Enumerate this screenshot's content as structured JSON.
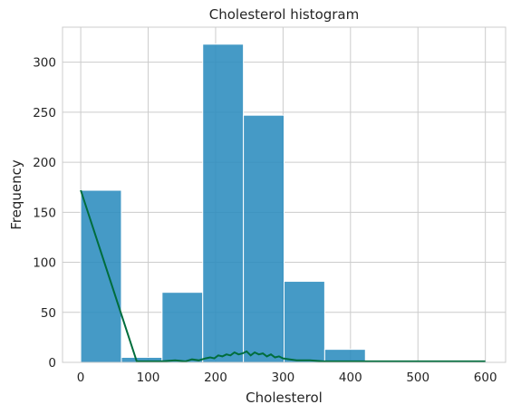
{
  "chart_data": {
    "type": "bar",
    "title": "Cholesterol histogram",
    "xlabel": "Cholesterol",
    "ylabel": "Frequency",
    "xlim": [
      -27,
      630
    ],
    "ylim": [
      0,
      335
    ],
    "xticks": [
      0,
      100,
      200,
      300,
      400,
      500,
      600
    ],
    "yticks": [
      0,
      50,
      100,
      150,
      200,
      250,
      300
    ],
    "grid": true,
    "bar_color": "#2b8cbe",
    "line_color": "#006d3c",
    "bins": [
      {
        "x0": 0,
        "x1": 60.3,
        "count": 172
      },
      {
        "x0": 60.3,
        "x1": 120.6,
        "count": 5
      },
      {
        "x0": 120.6,
        "x1": 180.9,
        "count": 70
      },
      {
        "x0": 180.9,
        "x1": 241.2,
        "count": 318
      },
      {
        "x0": 241.2,
        "x1": 301.5,
        "count": 247
      },
      {
        "x0": 301.5,
        "x1": 361.8,
        "count": 81
      },
      {
        "x0": 361.8,
        "x1": 422.1,
        "count": 13
      },
      {
        "x0": 422.1,
        "x1": 482.4,
        "count": 0
      },
      {
        "x0": 482.4,
        "x1": 542.7,
        "count": 0
      },
      {
        "x0": 542.7,
        "x1": 603,
        "count": 1
      }
    ],
    "line": {
      "x": [
        0,
        83,
        100,
        120,
        140,
        155,
        165,
        175,
        185,
        192,
        198,
        204,
        210,
        216,
        222,
        228,
        234,
        240,
        246,
        252,
        258,
        264,
        270,
        276,
        282,
        288,
        294,
        300,
        310,
        320,
        340,
        360,
        400,
        500,
        600
      ],
      "y": [
        172,
        1,
        1,
        1,
        2,
        1,
        3,
        2,
        4,
        5,
        4,
        7,
        6,
        8,
        7,
        10,
        8,
        9,
        11,
        7,
        10,
        8,
        9,
        6,
        8,
        5,
        6,
        4,
        3,
        2,
        2,
        1,
        1,
        1,
        1
      ]
    }
  }
}
